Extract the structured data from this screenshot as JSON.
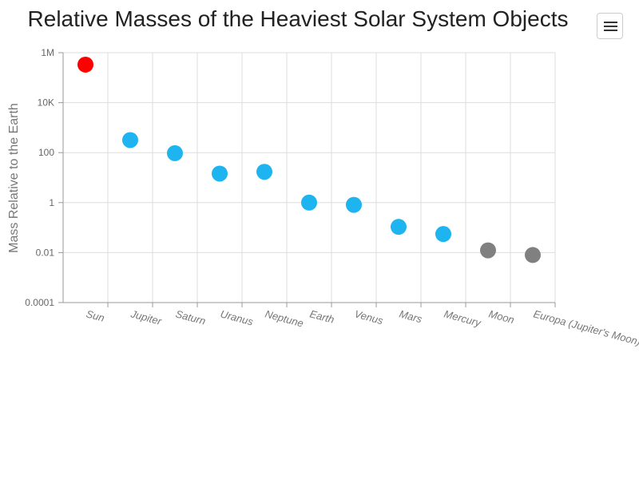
{
  "toolbar": {
    "menu_icon": "hamburger-menu-icon"
  },
  "chart_data": {
    "type": "scatter",
    "title": "Relative Masses of the Heaviest Solar System Objects",
    "ylabel": "Mass Relative to the Earth",
    "xlabel": "",
    "y_scale": "log",
    "ylim": [
      0.0001,
      1000000
    ],
    "y_ticks": [
      {
        "value": 0.0001,
        "label": "0.0001"
      },
      {
        "value": 0.01,
        "label": "0.01"
      },
      {
        "value": 1,
        "label": "1"
      },
      {
        "value": 100,
        "label": "100"
      },
      {
        "value": 10000,
        "label": "10K"
      },
      {
        "value": 1000000,
        "label": "1M"
      }
    ],
    "grid": true,
    "categories": [
      "Sun",
      "Jupiter",
      "Saturn",
      "Uranus",
      "Neptune",
      "Earth",
      "Venus",
      "Mars",
      "Mercury",
      "Moon",
      "Europa (Jupiter's Moon)"
    ],
    "values": [
      333000,
      318,
      95,
      14.5,
      17.1,
      1,
      0.815,
      0.107,
      0.0553,
      0.0123,
      0.008
    ],
    "colors": [
      "#ff0000",
      "#1eb4f0",
      "#1eb4f0",
      "#1eb4f0",
      "#1eb4f0",
      "#1eb4f0",
      "#1eb4f0",
      "#1eb4f0",
      "#1eb4f0",
      "#808080",
      "#808080"
    ]
  }
}
